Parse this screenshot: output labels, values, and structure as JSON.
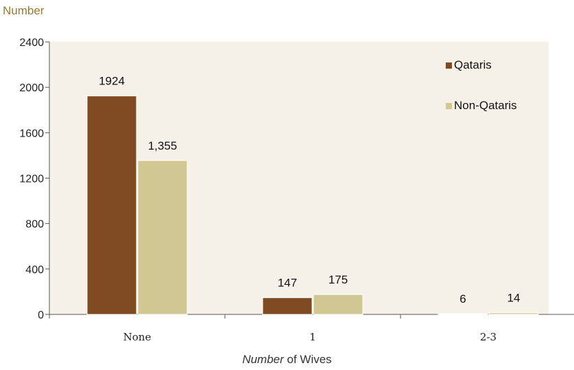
{
  "chart_data": {
    "type": "bar",
    "ylabel": "Number",
    "xlabel_italic": "Number",
    "xlabel_rest": " of Wives",
    "categories": [
      "None",
      "1",
      "2-3"
    ],
    "series": [
      {
        "name": "Qataris",
        "values": [
          1924,
          147,
          6
        ],
        "labels": [
          "1924",
          "147",
          "6"
        ],
        "color": "#7f4a22"
      },
      {
        "name": "Non-Qataris",
        "values": [
          1355,
          175,
          14
        ],
        "labels": [
          "1,355",
          "175",
          "14"
        ],
        "color": "#d1c792"
      }
    ],
    "ylim": [
      0,
      2400
    ],
    "yticks": [
      "0",
      "400",
      "800",
      "1200",
      "1600",
      "2000",
      "2400"
    ],
    "legend_position": "top-right",
    "plot_background": "#f5f1e8",
    "ylabel_color": "#9a7a35"
  }
}
